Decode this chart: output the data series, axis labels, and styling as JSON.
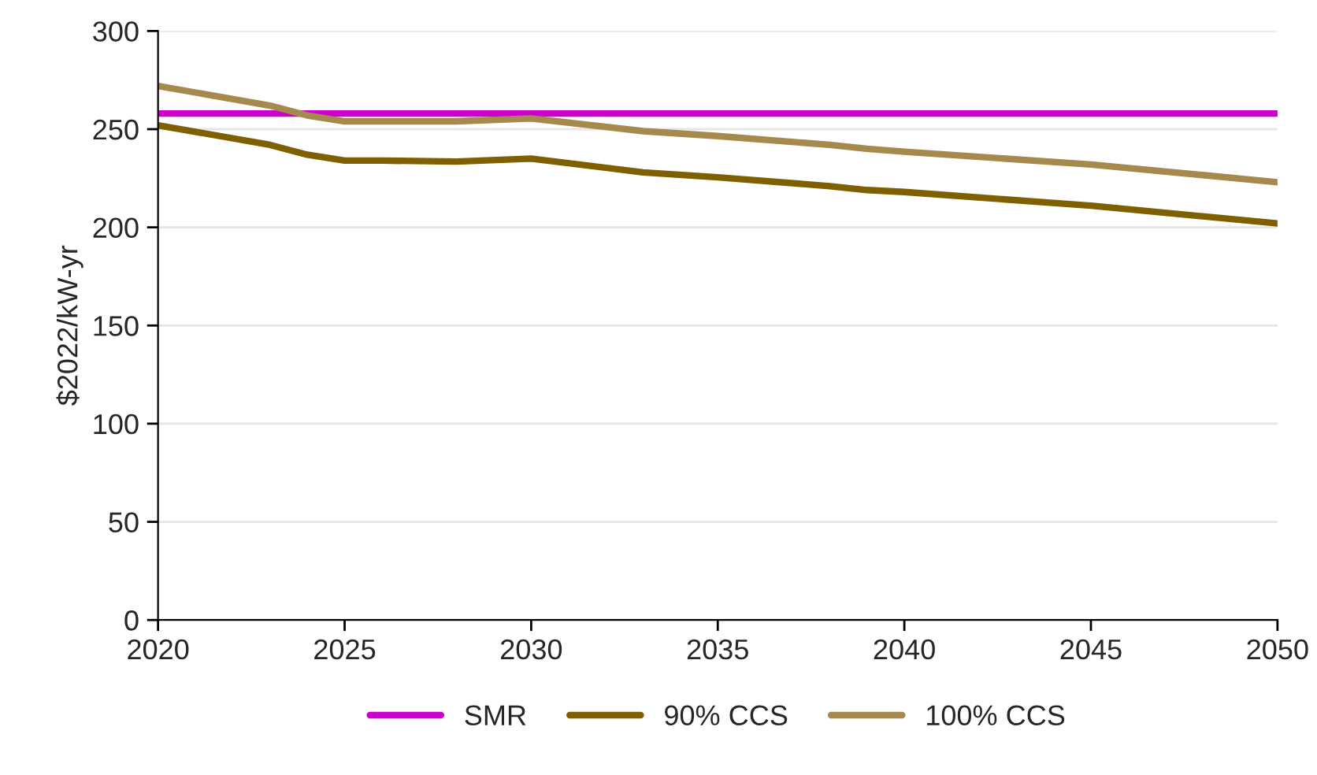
{
  "chart_data": {
    "type": "line",
    "ylabel": "$2022/kW-yr",
    "series": [
      {
        "name": "SMR",
        "color": "#cc00cc",
        "x": [
          2020,
          2050
        ],
        "values": [
          258,
          258
        ]
      },
      {
        "name": "90% CCS",
        "color": "#7f6000",
        "x": [
          2020,
          2023,
          2024,
          2025,
          2026,
          2028,
          2030,
          2033,
          2035,
          2038,
          2039,
          2040,
          2045,
          2050
        ],
        "values": [
          252,
          242,
          237,
          234,
          234,
          233.5,
          235,
          228,
          225.5,
          221,
          219,
          218,
          211,
          202
        ]
      },
      {
        "name": "100% CCS",
        "color": "#a6894c",
        "x": [
          2020,
          2023,
          2024,
          2025,
          2026,
          2028,
          2030,
          2033,
          2035,
          2038,
          2039,
          2040,
          2045,
          2050
        ],
        "values": [
          272,
          262,
          257,
          254,
          254,
          254,
          255.5,
          249,
          246.5,
          242,
          240,
          238.5,
          232,
          223
        ]
      }
    ],
    "xlim": [
      2020,
      2050
    ],
    "xticks": [
      2020,
      2025,
      2030,
      2035,
      2040,
      2045,
      2050
    ],
    "ylim": [
      0,
      300
    ],
    "yticks": [
      0,
      50,
      100,
      150,
      200,
      250,
      300
    ],
    "grid": "y",
    "legend": "bottom",
    "marker": "none",
    "line_style": "solid"
  }
}
